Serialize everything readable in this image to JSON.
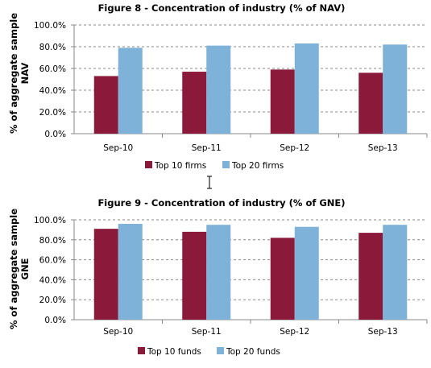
{
  "colors": {
    "top10": "#8b1a3a",
    "top20": "#7fb2d9"
  },
  "cursor_icon": "text-cursor-icon",
  "chart_data": [
    {
      "type": "bar",
      "title": "Figure 8 - Concentration of industry (% of NAV)",
      "ylabel_line1": "% of aggregate sample",
      "ylabel_line2": "NAV",
      "categories": [
        "Sep-10",
        "Sep-11",
        "Sep-12",
        "Sep-13"
      ],
      "yticks": [
        "0.0%",
        "20.0%",
        "40.0%",
        "60.0%",
        "80.0%",
        "100.0%"
      ],
      "ylim": [
        0,
        100
      ],
      "grid": true,
      "legend": "bottom",
      "series": [
        {
          "name": "Top 10 firms",
          "values": [
            53,
            57,
            59,
            56
          ]
        },
        {
          "name": "Top 20 firms",
          "values": [
            79,
            81,
            83,
            82
          ]
        }
      ]
    },
    {
      "type": "bar",
      "title": "Figure 9 - Concentration of industry (% of GNE)",
      "ylabel_line1": "% of aggregate sample",
      "ylabel_line2": "GNE",
      "categories": [
        "Sep-10",
        "Sep-11",
        "Sep-12",
        "Sep-13"
      ],
      "yticks": [
        "0.0%",
        "20.0%",
        "40.0%",
        "60.0%",
        "80.0%",
        "100.0%"
      ],
      "ylim": [
        0,
        100
      ],
      "grid": true,
      "legend": "bottom",
      "series": [
        {
          "name": "Top 10 funds",
          "values": [
            91,
            88,
            82,
            87
          ]
        },
        {
          "name": "Top 20 funds",
          "values": [
            96,
            95,
            93,
            95
          ]
        }
      ]
    }
  ]
}
